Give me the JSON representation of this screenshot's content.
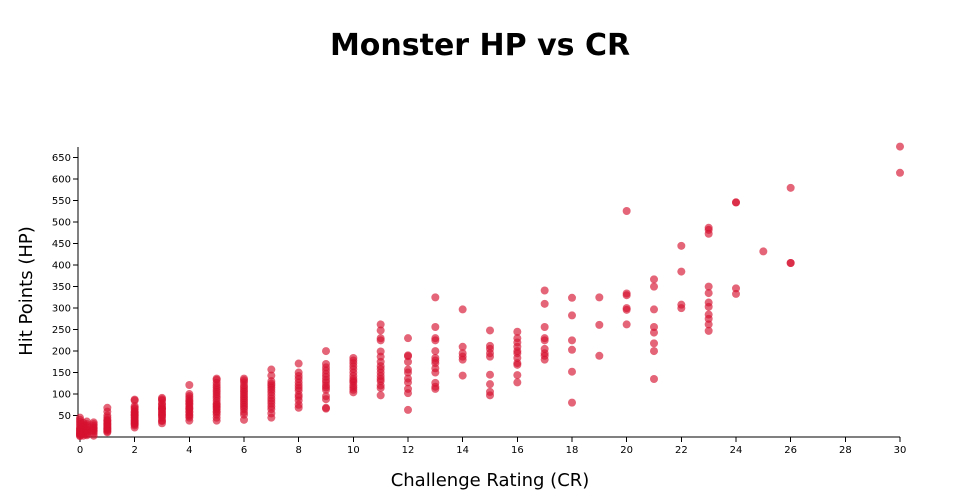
{
  "chart_data": {
    "type": "scatter",
    "title": "Monster HP vs CR",
    "xlabel": "Challenge Rating (CR)",
    "ylabel": "Hit Points (HP)",
    "xlim": [
      0,
      30
    ],
    "ylim": [
      0,
      675
    ],
    "xticks": [
      0,
      2,
      4,
      6,
      8,
      10,
      12,
      14,
      16,
      18,
      20,
      22,
      24,
      26,
      28,
      30
    ],
    "yticks": [
      50,
      100,
      150,
      200,
      250,
      300,
      350,
      400,
      450,
      500,
      550,
      600,
      650
    ],
    "grid": false,
    "legend": "none",
    "marker_color": "#d6112f",
    "marker_opacity": 0.65,
    "points": [
      [
        0,
        2
      ],
      [
        0,
        4
      ],
      [
        0,
        6
      ],
      [
        0,
        8
      ],
      [
        0,
        10
      ],
      [
        0,
        12
      ],
      [
        0,
        15
      ],
      [
        0,
        18
      ],
      [
        0,
        20
      ],
      [
        0,
        25
      ],
      [
        0,
        30
      ],
      [
        0,
        35
      ],
      [
        0,
        40
      ],
      [
        0,
        45
      ],
      [
        0.125,
        3
      ],
      [
        0.125,
        7
      ],
      [
        0.125,
        9
      ],
      [
        0.125,
        11
      ],
      [
        0.125,
        13
      ],
      [
        0.125,
        16
      ],
      [
        0.125,
        19
      ],
      [
        0.125,
        22
      ],
      [
        0.125,
        27
      ],
      [
        0.125,
        33
      ],
      [
        0.25,
        4
      ],
      [
        0.25,
        7
      ],
      [
        0.25,
        10
      ],
      [
        0.25,
        13
      ],
      [
        0.25,
        16
      ],
      [
        0.25,
        18
      ],
      [
        0.25,
        22
      ],
      [
        0.25,
        26
      ],
      [
        0.25,
        30
      ],
      [
        0.25,
        36
      ],
      [
        0.5,
        3
      ],
      [
        0.5,
        9
      ],
      [
        0.5,
        13
      ],
      [
        0.5,
        16
      ],
      [
        0.5,
        19
      ],
      [
        0.5,
        22
      ],
      [
        0.5,
        26
      ],
      [
        0.5,
        30
      ],
      [
        0.5,
        34
      ],
      [
        1,
        11
      ],
      [
        1,
        13
      ],
      [
        1,
        16
      ],
      [
        1,
        18
      ],
      [
        1,
        20
      ],
      [
        1,
        22
      ],
      [
        1,
        25
      ],
      [
        1,
        27
      ],
      [
        1,
        30
      ],
      [
        1,
        32
      ],
      [
        1,
        35
      ],
      [
        1,
        38
      ],
      [
        1,
        40
      ],
      [
        1,
        45
      ],
      [
        1,
        50
      ],
      [
        1,
        59
      ],
      [
        1,
        68
      ],
      [
        2,
        22
      ],
      [
        2,
        27
      ],
      [
        2,
        30
      ],
      [
        2,
        32
      ],
      [
        2,
        34
      ],
      [
        2,
        37
      ],
      [
        2,
        39
      ],
      [
        2,
        42
      ],
      [
        2,
        45
      ],
      [
        2,
        48
      ],
      [
        2,
        51
      ],
      [
        2,
        52
      ],
      [
        2,
        55
      ],
      [
        2,
        58
      ],
      [
        2,
        60
      ],
      [
        2,
        65
      ],
      [
        2,
        68
      ],
      [
        2,
        72
      ],
      [
        2,
        85
      ],
      [
        2,
        87
      ],
      [
        3,
        32
      ],
      [
        3,
        37
      ],
      [
        3,
        39
      ],
      [
        3,
        45
      ],
      [
        3,
        49
      ],
      [
        3,
        52
      ],
      [
        3,
        55
      ],
      [
        3,
        59
      ],
      [
        3,
        63
      ],
      [
        3,
        66
      ],
      [
        3,
        67
      ],
      [
        3,
        70
      ],
      [
        3,
        75
      ],
      [
        3,
        78
      ],
      [
        3,
        85
      ],
      [
        3,
        88
      ],
      [
        3,
        91
      ],
      [
        4,
        38
      ],
      [
        4,
        45
      ],
      [
        4,
        49
      ],
      [
        4,
        52
      ],
      [
        4,
        57
      ],
      [
        4,
        60
      ],
      [
        4,
        65
      ],
      [
        4,
        67
      ],
      [
        4,
        70
      ],
      [
        4,
        75
      ],
      [
        4,
        78
      ],
      [
        4,
        82
      ],
      [
        4,
        85
      ],
      [
        4,
        90
      ],
      [
        4,
        95
      ],
      [
        4,
        100
      ],
      [
        4,
        121
      ],
      [
        5,
        38
      ],
      [
        5,
        45
      ],
      [
        5,
        52
      ],
      [
        5,
        57
      ],
      [
        5,
        60
      ],
      [
        5,
        65
      ],
      [
        5,
        68
      ],
      [
        5,
        72
      ],
      [
        5,
        75
      ],
      [
        5,
        78
      ],
      [
        5,
        84
      ],
      [
        5,
        90
      ],
      [
        5,
        95
      ],
      [
        5,
        100
      ],
      [
        5,
        105
      ],
      [
        5,
        110
      ],
      [
        5,
        115
      ],
      [
        5,
        120
      ],
      [
        5,
        126
      ],
      [
        5,
        133
      ],
      [
        5,
        136
      ],
      [
        6,
        40
      ],
      [
        6,
        52
      ],
      [
        6,
        58
      ],
      [
        6,
        65
      ],
      [
        6,
        70
      ],
      [
        6,
        75
      ],
      [
        6,
        80
      ],
      [
        6,
        85
      ],
      [
        6,
        90
      ],
      [
        6,
        95
      ],
      [
        6,
        100
      ],
      [
        6,
        105
      ],
      [
        6,
        110
      ],
      [
        6,
        115
      ],
      [
        6,
        120
      ],
      [
        6,
        127
      ],
      [
        6,
        132
      ],
      [
        6,
        136
      ],
      [
        7,
        45
      ],
      [
        7,
        55
      ],
      [
        7,
        65
      ],
      [
        7,
        71
      ],
      [
        7,
        78
      ],
      [
        7,
        84
      ],
      [
        7,
        90
      ],
      [
        7,
        97
      ],
      [
        7,
        104
      ],
      [
        7,
        110
      ],
      [
        7,
        115
      ],
      [
        7,
        120
      ],
      [
        7,
        124
      ],
      [
        7,
        130
      ],
      [
        7,
        143
      ],
      [
        7,
        157
      ],
      [
        8,
        68
      ],
      [
        8,
        75
      ],
      [
        8,
        85
      ],
      [
        8,
        93
      ],
      [
        8,
        98
      ],
      [
        8,
        108
      ],
      [
        8,
        114
      ],
      [
        8,
        120
      ],
      [
        8,
        127
      ],
      [
        8,
        135
      ],
      [
        8,
        142
      ],
      [
        8,
        150
      ],
      [
        8,
        171
      ],
      [
        9,
        66
      ],
      [
        9,
        68
      ],
      [
        9,
        88
      ],
      [
        9,
        95
      ],
      [
        9,
        110
      ],
      [
        9,
        115
      ],
      [
        9,
        120
      ],
      [
        9,
        127
      ],
      [
        9,
        133
      ],
      [
        9,
        140
      ],
      [
        9,
        147
      ],
      [
        9,
        155
      ],
      [
        9,
        162
      ],
      [
        9,
        170
      ],
      [
        9,
        200
      ],
      [
        10,
        104
      ],
      [
        10,
        110
      ],
      [
        10,
        115
      ],
      [
        10,
        120
      ],
      [
        10,
        127
      ],
      [
        10,
        131
      ],
      [
        10,
        135
      ],
      [
        10,
        142
      ],
      [
        10,
        150
      ],
      [
        10,
        158
      ],
      [
        10,
        165
      ],
      [
        10,
        172
      ],
      [
        10,
        178
      ],
      [
        10,
        184
      ],
      [
        11,
        97
      ],
      [
        11,
        114
      ],
      [
        11,
        120
      ],
      [
        11,
        130
      ],
      [
        11,
        135
      ],
      [
        11,
        142
      ],
      [
        11,
        150
      ],
      [
        11,
        158
      ],
      [
        11,
        165
      ],
      [
        11,
        175
      ],
      [
        11,
        187
      ],
      [
        11,
        199
      ],
      [
        11,
        225
      ],
      [
        11,
        230
      ],
      [
        11,
        248
      ],
      [
        11,
        262
      ],
      [
        12,
        63
      ],
      [
        12,
        102
      ],
      [
        12,
        112
      ],
      [
        12,
        127
      ],
      [
        12,
        136
      ],
      [
        12,
        150
      ],
      [
        12,
        157
      ],
      [
        12,
        175
      ],
      [
        12,
        188
      ],
      [
        12,
        190
      ],
      [
        12,
        230
      ],
      [
        13,
        112
      ],
      [
        13,
        117
      ],
      [
        13,
        126
      ],
      [
        13,
        150
      ],
      [
        13,
        160
      ],
      [
        13,
        172
      ],
      [
        13,
        178
      ],
      [
        13,
        184
      ],
      [
        13,
        200
      ],
      [
        13,
        225
      ],
      [
        13,
        230
      ],
      [
        13,
        256
      ],
      [
        13,
        325
      ],
      [
        14,
        143
      ],
      [
        14,
        180
      ],
      [
        14,
        187
      ],
      [
        14,
        195
      ],
      [
        14,
        210
      ],
      [
        14,
        297
      ],
      [
        15,
        97
      ],
      [
        15,
        105
      ],
      [
        15,
        123
      ],
      [
        15,
        145
      ],
      [
        15,
        187
      ],
      [
        15,
        195
      ],
      [
        15,
        205
      ],
      [
        15,
        212
      ],
      [
        15,
        248
      ],
      [
        16,
        127
      ],
      [
        16,
        144
      ],
      [
        16,
        168
      ],
      [
        16,
        172
      ],
      [
        16,
        184
      ],
      [
        16,
        195
      ],
      [
        16,
        200
      ],
      [
        16,
        210
      ],
      [
        16,
        220
      ],
      [
        16,
        230
      ],
      [
        16,
        245
      ],
      [
        17,
        180
      ],
      [
        17,
        189
      ],
      [
        17,
        195
      ],
      [
        17,
        205
      ],
      [
        17,
        225
      ],
      [
        17,
        230
      ],
      [
        17,
        256
      ],
      [
        17,
        310
      ],
      [
        17,
        341
      ],
      [
        18,
        80
      ],
      [
        18,
        152
      ],
      [
        18,
        203
      ],
      [
        18,
        225
      ],
      [
        18,
        283
      ],
      [
        18,
        324
      ],
      [
        19,
        189
      ],
      [
        19,
        261
      ],
      [
        19,
        325
      ],
      [
        20,
        262
      ],
      [
        20,
        296
      ],
      [
        20,
        300
      ],
      [
        20,
        330
      ],
      [
        20,
        334
      ],
      [
        20,
        526
      ],
      [
        21,
        135
      ],
      [
        21,
        200
      ],
      [
        21,
        218
      ],
      [
        21,
        243
      ],
      [
        21,
        256
      ],
      [
        21,
        297
      ],
      [
        21,
        350
      ],
      [
        21,
        367
      ],
      [
        22,
        300
      ],
      [
        22,
        308
      ],
      [
        22,
        385
      ],
      [
        22,
        445
      ],
      [
        23,
        247
      ],
      [
        23,
        262
      ],
      [
        23,
        275
      ],
      [
        23,
        285
      ],
      [
        23,
        303
      ],
      [
        23,
        313
      ],
      [
        23,
        335
      ],
      [
        23,
        350
      ],
      [
        23,
        473
      ],
      [
        23,
        482
      ],
      [
        23,
        487
      ],
      [
        24,
        333
      ],
      [
        24,
        346
      ],
      [
        24,
        546
      ],
      [
        24,
        546
      ],
      [
        25,
        432
      ],
      [
        26,
        405
      ],
      [
        26,
        405
      ],
      [
        26,
        580
      ],
      [
        30,
        615
      ],
      [
        30,
        676
      ]
    ]
  }
}
